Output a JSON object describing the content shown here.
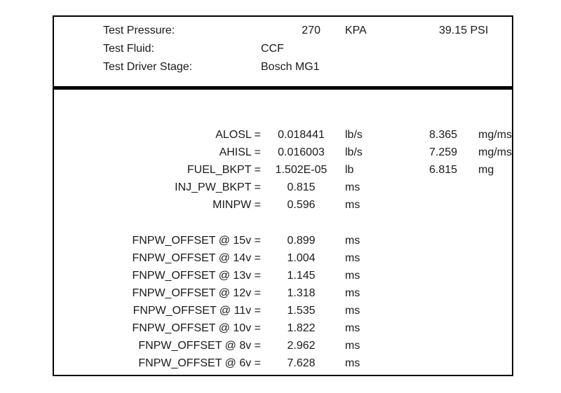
{
  "header": {
    "rows": [
      {
        "label": "Test Pressure:",
        "value": "270",
        "unit": "KPA",
        "alt": "39.15 PSI"
      },
      {
        "label": "Test Fluid:",
        "value": "CCF",
        "unit": "",
        "alt": ""
      },
      {
        "label": "Test Driver Stage:",
        "value": "Bosch MG1",
        "unit": "",
        "alt": ""
      }
    ]
  },
  "parameters": [
    {
      "label": "ALOSL =",
      "value": "0.018441",
      "unit": "lb/s",
      "alt_value": "8.365",
      "alt_unit": "mg/ms"
    },
    {
      "label": "AHISL =",
      "value": "0.016003",
      "unit": "lb/s",
      "alt_value": "7.259",
      "alt_unit": "mg/ms"
    },
    {
      "label": "FUEL_BKPT =",
      "value": "1.502E-05",
      "unit": "lb",
      "alt_value": "6.815",
      "alt_unit": "mg"
    },
    {
      "label": "INJ_PW_BKPT =",
      "value": "0.815",
      "unit": "ms",
      "alt_value": "",
      "alt_unit": ""
    },
    {
      "label": "MINPW =",
      "value": "0.596",
      "unit": "ms",
      "alt_value": "",
      "alt_unit": ""
    }
  ],
  "offsets": [
    {
      "label": "FNPW_OFFSET @ 15v =",
      "value": "0.899",
      "unit": "ms"
    },
    {
      "label": "FNPW_OFFSET @ 14v =",
      "value": "1.004",
      "unit": "ms"
    },
    {
      "label": "FNPW_OFFSET @ 13v =",
      "value": "1.145",
      "unit": "ms"
    },
    {
      "label": "FNPW_OFFSET @ 12v =",
      "value": "1.318",
      "unit": "ms"
    },
    {
      "label": "FNPW_OFFSET @ 11v =",
      "value": "1.535",
      "unit": "ms"
    },
    {
      "label": "FNPW_OFFSET @ 10v =",
      "value": "1.822",
      "unit": "ms"
    },
    {
      "label": "FNPW_OFFSET @ 8v =",
      "value": "2.962",
      "unit": "ms"
    },
    {
      "label": "FNPW_OFFSET @ 6v =",
      "value": "7.628",
      "unit": "ms"
    }
  ]
}
